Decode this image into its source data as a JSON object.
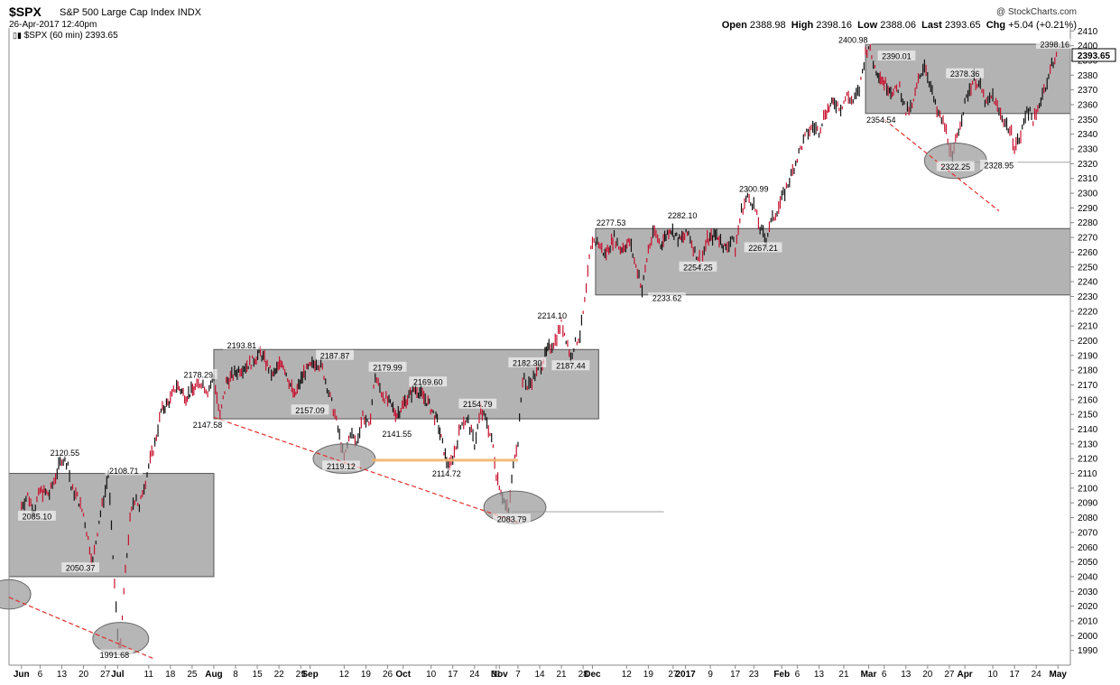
{
  "header": {
    "ticker": "$SPX",
    "index_name": "S&P 500 Large Cap Index",
    "exchange": "INDX",
    "datetime": "26-Apr-2017 12:40pm",
    "series_label": "$SPX (60 min) 2393.65",
    "credit": "@ StockCharts.com",
    "open_label": "Open",
    "open": "2388.98",
    "high_label": "High",
    "high": "2398.16",
    "low_label": "Low",
    "low": "2388.06",
    "last_label": "Last",
    "last": "2393.65",
    "chg_label": "Chg",
    "chg": "+5.04 (+0.21%)"
  },
  "chart_data": {
    "type": "candlestick",
    "title": "$SPX S&P 500 Large Cap Index INDX",
    "ylim": [
      1980,
      2412
    ],
    "yticks": [
      1990,
      2000,
      2010,
      2020,
      2030,
      2040,
      2050,
      2060,
      2070,
      2080,
      2090,
      2100,
      2110,
      2120,
      2130,
      2140,
      2150,
      2160,
      2170,
      2180,
      2190,
      2200,
      2210,
      2220,
      2230,
      2240,
      2250,
      2260,
      2270,
      2280,
      2290,
      2300,
      2310,
      2320,
      2330,
      2340,
      2350,
      2360,
      2370,
      2380,
      2390,
      2400,
      2410
    ],
    "last_price": "2393.65",
    "xticks": [
      {
        "label": "Jun",
        "day": 0,
        "bold": true
      },
      {
        "label": "6",
        "day": 6
      },
      {
        "label": "13",
        "day": 13
      },
      {
        "label": "20",
        "day": 20
      },
      {
        "label": "27",
        "day": 27
      },
      {
        "label": "Jul",
        "day": 31,
        "bold": true
      },
      {
        "label": "11",
        "day": 41
      },
      {
        "label": "18",
        "day": 48
      },
      {
        "label": "25",
        "day": 55
      },
      {
        "label": "Aug",
        "day": 62,
        "bold": true
      },
      {
        "label": "8",
        "day": 69
      },
      {
        "label": "15",
        "day": 76
      },
      {
        "label": "22",
        "day": 83
      },
      {
        "label": "29",
        "day": 90
      },
      {
        "label": "Sep",
        "day": 93,
        "bold": true
      },
      {
        "label": "12",
        "day": 104
      },
      {
        "label": "19",
        "day": 111
      },
      {
        "label": "26",
        "day": 118
      },
      {
        "label": "Oct",
        "day": 123,
        "bold": true
      },
      {
        "label": "10",
        "day": 132
      },
      {
        "label": "17",
        "day": 139
      },
      {
        "label": "24",
        "day": 146
      },
      {
        "label": "31",
        "day": 153
      },
      {
        "label": "Nov",
        "day": 154,
        "bold": true
      },
      {
        "label": "7",
        "day": 160
      },
      {
        "label": "14",
        "day": 167
      },
      {
        "label": "21",
        "day": 174
      },
      {
        "label": "28",
        "day": 181
      },
      {
        "label": "Dec",
        "day": 184,
        "bold": true
      },
      {
        "label": "12",
        "day": 195
      },
      {
        "label": "19",
        "day": 202
      },
      {
        "label": "27",
        "day": 210
      },
      {
        "label": "2017",
        "day": 214,
        "bold": true
      },
      {
        "label": "9",
        "day": 222
      },
      {
        "label": "17",
        "day": 230
      },
      {
        "label": "23",
        "day": 236
      },
      {
        "label": "Feb",
        "day": 245,
        "bold": true
      },
      {
        "label": "6",
        "day": 250
      },
      {
        "label": "13",
        "day": 257
      },
      {
        "label": "21",
        "day": 265
      },
      {
        "label": "Mar",
        "day": 273,
        "bold": true
      },
      {
        "label": "6",
        "day": 278
      },
      {
        "label": "13",
        "day": 285
      },
      {
        "label": "20",
        "day": 292
      },
      {
        "label": "27",
        "day": 299
      },
      {
        "label": "Apr",
        "day": 304,
        "bold": true
      },
      {
        "label": "10",
        "day": 313
      },
      {
        "label": "17",
        "day": 320
      },
      {
        "label": "24",
        "day": 327
      },
      {
        "label": "May",
        "day": 334,
        "bold": true
      }
    ],
    "path": [
      [
        0,
        2088
      ],
      [
        2,
        2095
      ],
      [
        4,
        2085
      ],
      [
        6,
        2098
      ],
      [
        9,
        2096
      ],
      [
        11,
        2108
      ],
      [
        13,
        2120
      ],
      [
        15,
        2117
      ],
      [
        16,
        2100
      ],
      [
        18,
        2094
      ],
      [
        20,
        2082
      ],
      [
        22,
        2060
      ],
      [
        23,
        2050
      ],
      [
        25,
        2078
      ],
      [
        27,
        2098
      ],
      [
        28,
        2110
      ],
      [
        29,
        2072
      ],
      [
        30,
        2035
      ],
      [
        31,
        2001
      ],
      [
        32,
        1992
      ],
      [
        33,
        2030
      ],
      [
        34,
        2055
      ],
      [
        35,
        2078
      ],
      [
        36,
        2090
      ],
      [
        37,
        2095
      ],
      [
        38,
        2085
      ],
      [
        39,
        2098
      ],
      [
        40,
        2105
      ],
      [
        41,
        2115
      ],
      [
        43,
        2130
      ],
      [
        45,
        2152
      ],
      [
        48,
        2160
      ],
      [
        50,
        2170
      ],
      [
        53,
        2162
      ],
      [
        56,
        2168
      ],
      [
        58,
        2172
      ],
      [
        60,
        2166
      ],
      [
        62,
        2175
      ],
      [
        64,
        2148
      ],
      [
        66,
        2172
      ],
      [
        70,
        2180
      ],
      [
        74,
        2185
      ],
      [
        77,
        2192
      ],
      [
        81,
        2176
      ],
      [
        84,
        2186
      ],
      [
        88,
        2162
      ],
      [
        91,
        2178
      ],
      [
        95,
        2186
      ],
      [
        97,
        2181
      ],
      [
        99,
        2165
      ],
      [
        101,
        2150
      ],
      [
        103,
        2130
      ],
      [
        104,
        2119
      ],
      [
        106,
        2138
      ],
      [
        108,
        2130
      ],
      [
        110,
        2150
      ],
      [
        112,
        2141
      ],
      [
        114,
        2176
      ],
      [
        116,
        2165
      ],
      [
        118,
        2159
      ],
      [
        121,
        2150
      ],
      [
        124,
        2160
      ],
      [
        127,
        2168
      ],
      [
        131,
        2158
      ],
      [
        134,
        2145
      ],
      [
        137,
        2118
      ],
      [
        138,
        2114
      ],
      [
        140,
        2128
      ],
      [
        142,
        2146
      ],
      [
        144,
        2145
      ],
      [
        146,
        2130
      ],
      [
        148,
        2152
      ],
      [
        150,
        2145
      ],
      [
        152,
        2128
      ],
      [
        153,
        2110
      ],
      [
        155,
        2095
      ],
      [
        156,
        2088
      ],
      [
        157,
        2084
      ],
      [
        158,
        2105
      ],
      [
        159,
        2124
      ],
      [
        160,
        2132
      ],
      [
        161,
        2162
      ],
      [
        162,
        2176
      ],
      [
        163,
        2168
      ],
      [
        165,
        2175
      ],
      [
        167,
        2182
      ],
      [
        170,
        2195
      ],
      [
        172,
        2200
      ],
      [
        174,
        2212
      ],
      [
        176,
        2198
      ],
      [
        177,
        2188
      ],
      [
        178,
        2196
      ],
      [
        180,
        2204
      ],
      [
        181,
        2218
      ],
      [
        182,
        2234
      ],
      [
        183,
        2255
      ],
      [
        184,
        2268
      ],
      [
        186,
        2266
      ],
      [
        188,
        2258
      ],
      [
        191,
        2270
      ],
      [
        193,
        2262
      ],
      [
        196,
        2267
      ],
      [
        198,
        2250
      ],
      [
        199,
        2245
      ],
      [
        200,
        2234
      ],
      [
        202,
        2262
      ],
      [
        204,
        2274
      ],
      [
        206,
        2265
      ],
      [
        209,
        2276
      ],
      [
        212,
        2268
      ],
      [
        215,
        2273
      ],
      [
        217,
        2260
      ],
      [
        219,
        2254
      ],
      [
        221,
        2268
      ],
      [
        224,
        2272
      ],
      [
        227,
        2262
      ],
      [
        229,
        2270
      ],
      [
        230,
        2262
      ],
      [
        232,
        2288
      ],
      [
        234,
        2298
      ],
      [
        236,
        2292
      ],
      [
        238,
        2276
      ],
      [
        240,
        2268
      ],
      [
        241,
        2278
      ],
      [
        243,
        2286
      ],
      [
        245,
        2296
      ],
      [
        247,
        2306
      ],
      [
        249,
        2318
      ],
      [
        251,
        2330
      ],
      [
        253,
        2340
      ],
      [
        255,
        2345
      ],
      [
        257,
        2342
      ],
      [
        259,
        2355
      ],
      [
        262,
        2362
      ],
      [
        264,
        2358
      ],
      [
        266,
        2366
      ],
      [
        268,
        2362
      ],
      [
        270,
        2370
      ],
      [
        272,
        2395
      ],
      [
        273,
        2400
      ],
      [
        275,
        2385
      ],
      [
        278,
        2375
      ],
      [
        281,
        2368
      ],
      [
        283,
        2372
      ],
      [
        285,
        2355
      ],
      [
        287,
        2358
      ],
      [
        289,
        2376
      ],
      [
        291,
        2388
      ],
      [
        293,
        2372
      ],
      [
        295,
        2355
      ],
      [
        297,
        2348
      ],
      [
        298,
        2342
      ],
      [
        300,
        2322
      ],
      [
        301,
        2335
      ],
      [
        303,
        2352
      ],
      [
        305,
        2368
      ],
      [
        307,
        2378
      ],
      [
        309,
        2372
      ],
      [
        311,
        2360
      ],
      [
        313,
        2366
      ],
      [
        315,
        2355
      ],
      [
        317,
        2348
      ],
      [
        319,
        2340
      ],
      [
        320,
        2332
      ],
      [
        322,
        2338
      ],
      [
        324,
        2358
      ],
      [
        326,
        2350
      ],
      [
        327,
        2352
      ],
      [
        329,
        2368
      ],
      [
        331,
        2378
      ],
      [
        332,
        2388
      ],
      [
        334,
        2394
      ]
    ],
    "price_labels": [
      {
        "text": "2120.55",
        "day": 14,
        "v": 2124
      },
      {
        "text": "2085.10",
        "day": 5,
        "v": 2081
      },
      {
        "text": "2050.37",
        "day": 19,
        "v": 2046
      },
      {
        "text": "1991.68",
        "day": 30,
        "v": 1987
      },
      {
        "text": "2108.71",
        "day": 33,
        "v": 2112
      },
      {
        "text": "2178.29",
        "day": 57,
        "v": 2177
      },
      {
        "text": "2147.58",
        "day": 60,
        "v": 2143
      },
      {
        "text": "2193.81",
        "day": 71,
        "v": 2197
      },
      {
        "text": "2157.09",
        "day": 93,
        "v": 2153
      },
      {
        "text": "2187.87",
        "day": 101,
        "v": 2190
      },
      {
        "text": "2119.12",
        "day": 103,
        "v": 2115
      },
      {
        "text": "2179.99",
        "day": 118,
        "v": 2182
      },
      {
        "text": "2141.55",
        "day": 121,
        "v": 2137
      },
      {
        "text": "2169.60",
        "day": 131,
        "v": 2172
      },
      {
        "text": "2114.72",
        "day": 137,
        "v": 2110
      },
      {
        "text": "2154.79",
        "day": 147,
        "v": 2157
      },
      {
        "text": "2083.79",
        "day": 158,
        "v": 2079
      },
      {
        "text": "2182.30",
        "day": 163,
        "v": 2185
      },
      {
        "text": "2214.10",
        "day": 171,
        "v": 2217
      },
      {
        "text": "2187.44",
        "day": 177,
        "v": 2183
      },
      {
        "text": "2277.53",
        "day": 190,
        "v": 2280
      },
      {
        "text": "2233.62",
        "day": 208,
        "v": 2229
      },
      {
        "text": "2282.10",
        "day": 213,
        "v": 2285
      },
      {
        "text": "2254.25",
        "day": 218,
        "v": 2250
      },
      {
        "text": "2300.99",
        "day": 236,
        "v": 2303
      },
      {
        "text": "2267.21",
        "day": 239,
        "v": 2263
      },
      {
        "text": "2400.98",
        "day": 268,
        "v": 2404
      },
      {
        "text": "2390.01",
        "day": 282,
        "v": 2393
      },
      {
        "text": "2354.54",
        "day": 277,
        "v": 2350
      },
      {
        "text": "2378.36",
        "day": 304,
        "v": 2381
      },
      {
        "text": "2322.25",
        "day": 301,
        "v": 2318
      },
      {
        "text": "2328.95",
        "day": 315,
        "v": 2319
      },
      {
        "text": "2398.16",
        "day": 333,
        "v": 2401
      }
    ],
    "zones": [
      {
        "d1": -4,
        "d2": 62,
        "v1": 2040,
        "v2": 2110
      },
      {
        "d1": 62,
        "d2": 186,
        "v1": 2147,
        "v2": 2194
      },
      {
        "d1": 185,
        "d2": 338,
        "v1": 2231,
        "v2": 2276
      },
      {
        "d1": 272,
        "d2": 338,
        "v1": 2354,
        "v2": 2401
      }
    ],
    "ellipses": [
      {
        "d": 32,
        "v": 1998,
        "rd": 9,
        "rv": 11
      },
      {
        "d": 104,
        "v": 2120,
        "rd": 10,
        "rv": 10
      },
      {
        "d": 159,
        "v": 2087,
        "rd": 10,
        "rv": 11
      },
      {
        "d": 301,
        "v": 2322,
        "rd": 10,
        "rv": 12
      },
      {
        "d": -4,
        "v": 2028,
        "rd": 7,
        "rv": 10
      }
    ],
    "trendlines": [
      {
        "d1": -4,
        "v1": 2026,
        "d2": 43,
        "v2": 1984
      },
      {
        "d1": 62,
        "v1": 2148,
        "d2": 161,
        "v2": 2076
      },
      {
        "d1": 278,
        "v1": 2350,
        "d2": 315,
        "v2": 2288
      }
    ],
    "hlines": [
      {
        "d1": 158,
        "d2": 207,
        "v": 2084,
        "color": "#999999"
      },
      {
        "d1": 300,
        "d2": 338,
        "v": 2321,
        "color": "#999999"
      },
      {
        "d1": 113,
        "d2": 160,
        "v": 2119,
        "color": "#f2b26b"
      }
    ]
  }
}
